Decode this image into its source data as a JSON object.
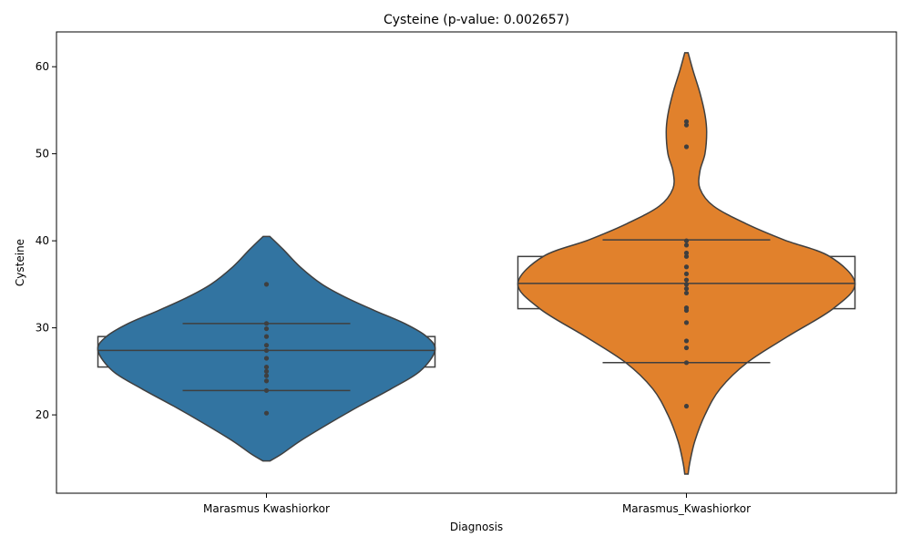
{
  "chart_data": {
    "type": "violin",
    "title": "Cysteine (p-value: 0.002657)",
    "xlabel": "Diagnosis",
    "ylabel": "Cysteine",
    "ylim": [
      11,
      64
    ],
    "yticks": [
      20,
      30,
      40,
      50,
      60
    ],
    "grid": false,
    "legend": "none",
    "categories": [
      "Marasmus Kwashiorkor",
      "Marasmus_Kwashiorkor"
    ],
    "series": [
      {
        "category": "Marasmus Kwashiorkor",
        "color": "#3274a1",
        "range": [
          14.7,
          40.5
        ],
        "q1": 25.5,
        "median": 27.4,
        "q3": 29.0,
        "percentile_lines": [
          22.8,
          30.5
        ],
        "density_profile": [
          [
            14.7,
            0.02
          ],
          [
            15.5,
            0.09
          ],
          [
            17.0,
            0.2
          ],
          [
            19.0,
            0.37
          ],
          [
            21.0,
            0.55
          ],
          [
            23.0,
            0.74
          ],
          [
            25.0,
            0.91
          ],
          [
            27.4,
            1.0
          ],
          [
            29.0,
            0.95
          ],
          [
            30.5,
            0.82
          ],
          [
            32.0,
            0.64
          ],
          [
            33.5,
            0.47
          ],
          [
            35.0,
            0.33
          ],
          [
            37.0,
            0.2
          ],
          [
            39.0,
            0.1
          ],
          [
            40.5,
            0.02
          ]
        ],
        "points": [
          35.0,
          30.5,
          29.9,
          29.0,
          28.0,
          27.4,
          26.5,
          25.5,
          25.0,
          24.5,
          23.9,
          22.8,
          20.2
        ]
      },
      {
        "category": "Marasmus_Kwashiorkor",
        "color": "#e1812c",
        "range": [
          13.2,
          61.6
        ],
        "q1": 32.2,
        "median": 35.1,
        "q3": 38.2,
        "percentile_lines": [
          26.0,
          40.1
        ],
        "density_profile": [
          [
            13.2,
            0.01
          ],
          [
            14.5,
            0.02
          ],
          [
            17.0,
            0.05
          ],
          [
            20.0,
            0.11
          ],
          [
            23.0,
            0.2
          ],
          [
            26.0,
            0.36
          ],
          [
            29.0,
            0.6
          ],
          [
            32.2,
            0.87
          ],
          [
            35.1,
            1.0
          ],
          [
            38.2,
            0.85
          ],
          [
            40.1,
            0.58
          ],
          [
            42.0,
            0.35
          ],
          [
            44.0,
            0.16
          ],
          [
            46.0,
            0.08
          ],
          [
            48.0,
            0.08
          ],
          [
            50.0,
            0.11
          ],
          [
            52.5,
            0.12
          ],
          [
            54.5,
            0.11
          ],
          [
            57.0,
            0.08
          ],
          [
            59.5,
            0.04
          ],
          [
            61.6,
            0.01
          ]
        ],
        "points": [
          53.7,
          53.3,
          50.8,
          40.0,
          39.5,
          38.6,
          38.2,
          37.0,
          36.2,
          35.5,
          35.0,
          34.5,
          34.0,
          32.3,
          32.0,
          30.6,
          28.5,
          27.7,
          26.0,
          21.0
        ]
      }
    ]
  }
}
